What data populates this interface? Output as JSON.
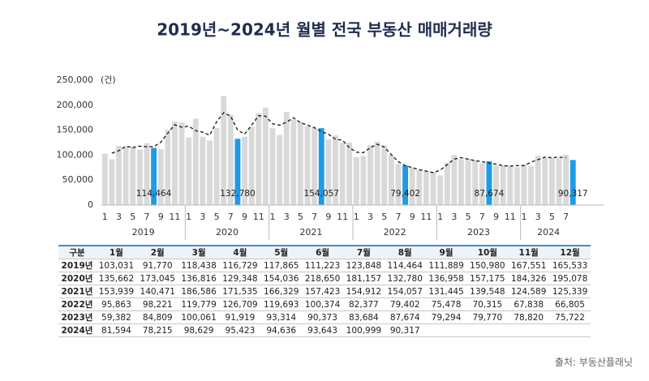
{
  "chart_data": {
    "type": "bar",
    "title": "2019년~2024년 월별 전국 부동산 매매거래량",
    "unit_label": "(건)",
    "years": [
      "2019",
      "2020",
      "2021",
      "2022",
      "2023",
      "2024"
    ],
    "categories": [
      "1",
      null,
      "3",
      null,
      "5",
      null,
      "7",
      null,
      "9",
      null,
      "11",
      null,
      "1",
      null,
      "3",
      null,
      "5",
      null,
      "7",
      null,
      "9",
      null,
      "11",
      null,
      "1",
      null,
      "3",
      null,
      "5",
      null,
      "7",
      null,
      "9",
      null,
      "11",
      null,
      "1",
      null,
      "3",
      null,
      "5",
      null,
      "7",
      null,
      "9",
      null,
      "11",
      null,
      "1",
      null,
      "3",
      null,
      "5",
      null,
      "7",
      null,
      "9",
      null,
      "11",
      null,
      "1",
      null,
      "3",
      null,
      "5",
      null,
      "7",
      null
    ],
    "values": [
      103031,
      91770,
      118438,
      116729,
      117865,
      111223,
      123848,
      114464,
      111889,
      150980,
      167551,
      165533,
      135662,
      173045,
      136816,
      129348,
      154036,
      218650,
      181157,
      132780,
      136958,
      157175,
      184326,
      195078,
      153939,
      140471,
      186586,
      171535,
      166329,
      157423,
      154912,
      154057,
      131445,
      139548,
      124589,
      125339,
      95863,
      98221,
      119779,
      126709,
      119693,
      100374,
      82377,
      79402,
      75478,
      70315,
      67838,
      66805,
      59382,
      84809,
      100061,
      91919,
      93314,
      90373,
      83684,
      87674,
      79294,
      79770,
      78820,
      75722,
      81594,
      78215,
      98629,
      95423,
      94636,
      93643,
      100999,
      90317
    ],
    "value_labels": [
      null,
      null,
      null,
      null,
      null,
      null,
      null,
      "114,464",
      null,
      null,
      null,
      null,
      null,
      null,
      null,
      null,
      null,
      null,
      null,
      "132,780",
      null,
      null,
      null,
      null,
      null,
      null,
      null,
      null,
      null,
      null,
      null,
      "154,057",
      null,
      null,
      null,
      null,
      null,
      null,
      null,
      null,
      null,
      null,
      null,
      "79,402",
      null,
      null,
      null,
      null,
      null,
      null,
      null,
      null,
      null,
      null,
      null,
      "87,674",
      null,
      null,
      null,
      null,
      null,
      null,
      null,
      null,
      null,
      null,
      null,
      "90,317"
    ],
    "colors": [
      "#d9d9d9",
      "#d9d9d9",
      "#d9d9d9",
      "#d9d9d9",
      "#d9d9d9",
      "#d9d9d9",
      "#d9d9d9",
      "#1e9be6",
      "#d9d9d9",
      "#d9d9d9",
      "#d9d9d9",
      "#d9d9d9",
      "#d9d9d9",
      "#d9d9d9",
      "#d9d9d9",
      "#d9d9d9",
      "#d9d9d9",
      "#d9d9d9",
      "#d9d9d9",
      "#1e9be6",
      "#d9d9d9",
      "#d9d9d9",
      "#d9d9d9",
      "#d9d9d9",
      "#d9d9d9",
      "#d9d9d9",
      "#d9d9d9",
      "#d9d9d9",
      "#d9d9d9",
      "#d9d9d9",
      "#d9d9d9",
      "#1e9be6",
      "#d9d9d9",
      "#d9d9d9",
      "#d9d9d9",
      "#d9d9d9",
      "#d9d9d9",
      "#d9d9d9",
      "#d9d9d9",
      "#d9d9d9",
      "#d9d9d9",
      "#d9d9d9",
      "#d9d9d9",
      "#1e9be6",
      "#d9d9d9",
      "#d9d9d9",
      "#d9d9d9",
      "#d9d9d9",
      "#d9d9d9",
      "#d9d9d9",
      "#d9d9d9",
      "#d9d9d9",
      "#d9d9d9",
      "#d9d9d9",
      "#d9d9d9",
      "#1e9be6",
      "#d9d9d9",
      "#d9d9d9",
      "#d9d9d9",
      "#d9d9d9",
      "#d9d9d9",
      "#d9d9d9",
      "#d9d9d9",
      "#d9d9d9",
      "#d9d9d9",
      "#d9d9d9",
      "#d9d9d9",
      "#1e9be6"
    ],
    "line_values": [
      null,
      104000,
      109000,
      118000,
      115000,
      118000,
      117000,
      117000,
      126000,
      144000,
      161000,
      156000,
      158000,
      149000,
      146000,
      140000,
      167000,
      185000,
      178000,
      150000,
      142000,
      160000,
      179000,
      178000,
      163000,
      160000,
      166000,
      175000,
      165000,
      160000,
      155000,
      147000,
      142000,
      132000,
      130000,
      115000,
      106000,
      105000,
      115000,
      122000,
      116000,
      101000,
      87000,
      79000,
      75000,
      71000,
      68000,
      65000,
      70000,
      81000,
      92000,
      95000,
      92000,
      89000,
      87000,
      84000,
      82000,
      79000,
      78000,
      79000,
      79000,
      86000,
      91000,
      96000,
      95000,
      96000,
      95000,
      null
    ],
    "line_color": "#222222",
    "ylim": [
      0,
      250000
    ],
    "yticks": [
      0,
      {
        "value": 50000,
        "label": "50,000"
      },
      {
        "value": 100000,
        "label": "100,000"
      },
      {
        "value": 150000,
        "label": "150,000"
      },
      {
        "value": 200000,
        "label": "200,000"
      },
      {
        "value": 250000,
        "label": "250,000"
      }
    ]
  },
  "table": {
    "header": [
      "구분",
      "1월",
      "2월",
      "3월",
      "4월",
      "5월",
      "6월",
      "7월",
      "8월",
      "9월",
      "10월",
      "11월",
      "12월"
    ],
    "rows": [
      [
        "2019년",
        "103,031",
        "91,770",
        "118,438",
        "116,729",
        "117,865",
        "111,223",
        "123,848",
        "114,464",
        "111,889",
        "150,980",
        "167,551",
        "165,533"
      ],
      [
        "2020년",
        "135,662",
        "173,045",
        "136,816",
        "129,348",
        "154,036",
        "218,650",
        "181,157",
        "132,780",
        "136,958",
        "157,175",
        "184,326",
        "195,078"
      ],
      [
        "2021년",
        "153,939",
        "140,471",
        "186,586",
        "171,535",
        "166,329",
        "157,423",
        "154,912",
        "154,057",
        "131,445",
        "139,548",
        "124,589",
        "125,339"
      ],
      [
        "2022년",
        "95,863",
        "98,221",
        "119,779",
        "126,709",
        "119,693",
        "100,374",
        "82,377",
        "79,402",
        "75,478",
        "70,315",
        "67,838",
        "66,805"
      ],
      [
        "2023년",
        "59,382",
        "84,809",
        "100,061",
        "91,919",
        "93,314",
        "90,373",
        "83,684",
        "87,674",
        "79,294",
        "79,770",
        "78,820",
        "75,722"
      ],
      [
        "2024년",
        "81,594",
        "78,215",
        "98,629",
        "95,423",
        "94,636",
        "93,643",
        "100,999",
        "90,317"
      ]
    ]
  },
  "source": "출처: 부동산플래닛"
}
